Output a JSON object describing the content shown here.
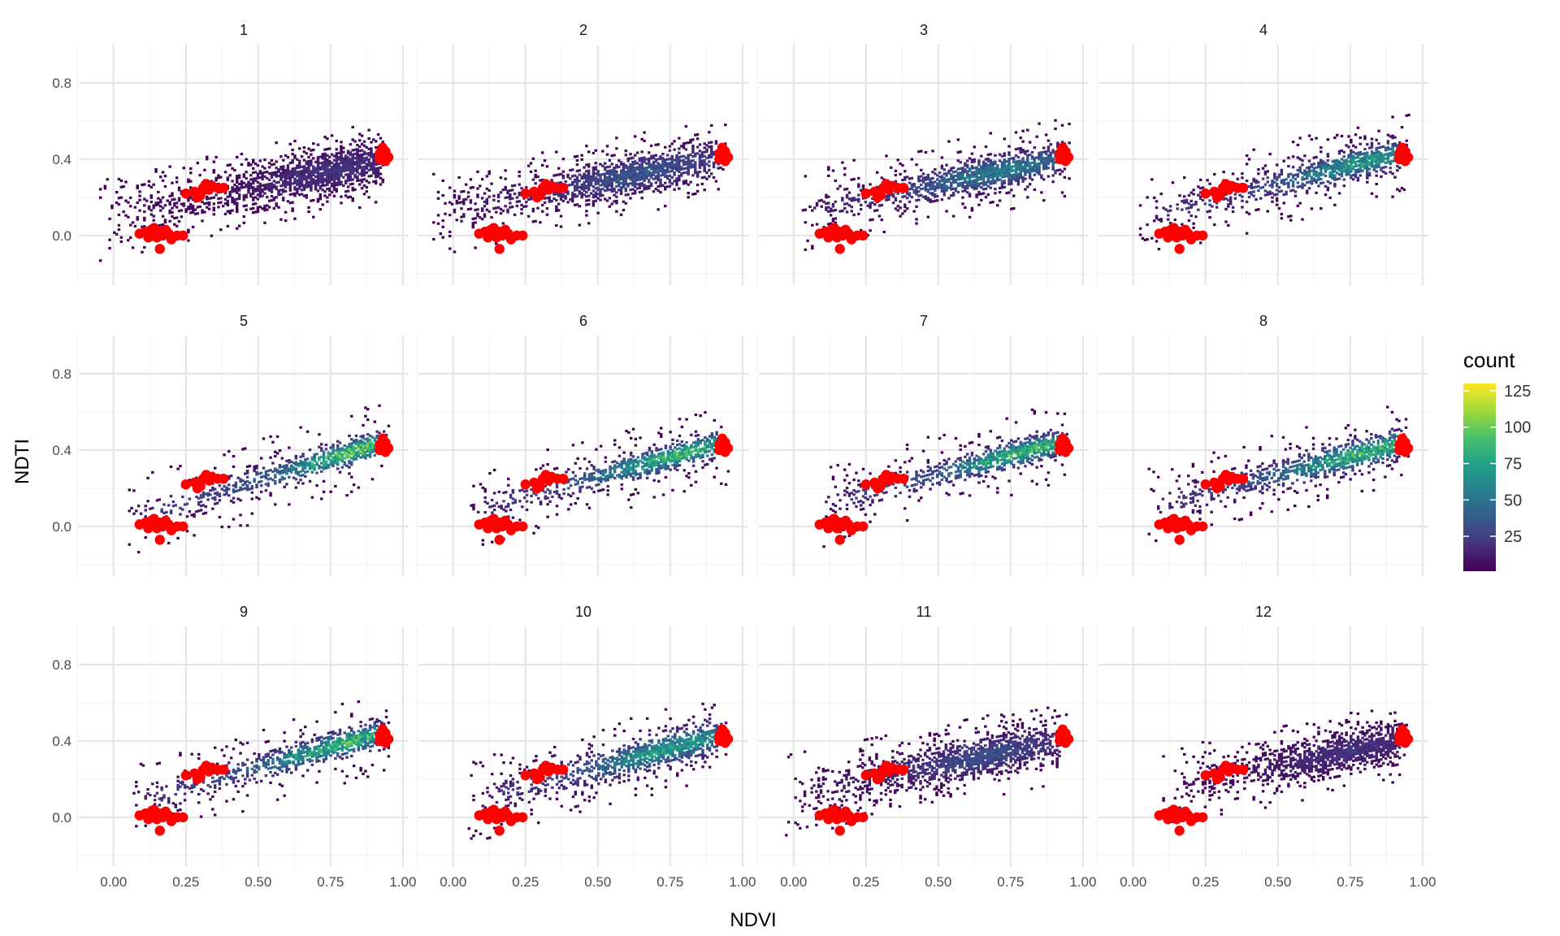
{
  "chart_data": {
    "type": "heatmap",
    "subtype": "faceted hexbin density with point overlay",
    "xlabel": "NDVI",
    "ylabel": "NDTI",
    "xlim": [
      -0.12,
      1.02
    ],
    "ylim": [
      -0.26,
      1.0
    ],
    "x_ticks": [
      0.0,
      0.25,
      0.5,
      0.75,
      1.0
    ],
    "x_tick_labels": [
      "0.00",
      "0.25",
      "0.50",
      "0.75",
      "1.00"
    ],
    "y_ticks": [
      0.0,
      0.4,
      0.8
    ],
    "y_tick_labels": [
      "0.0",
      "0.4",
      "0.8"
    ],
    "grid": true,
    "facet_layout": {
      "rows": 3,
      "cols": 4
    },
    "legend": {
      "title": "count",
      "placement": "right",
      "range": [
        1,
        130
      ],
      "ticks": [
        25,
        50,
        75,
        100,
        125
      ],
      "colormap": "viridis"
    },
    "colormap_stops": [
      "#440154",
      "#46327e",
      "#365c8d",
      "#277f8e",
      "#1fa187",
      "#4ac16d",
      "#a0da39",
      "#fde725"
    ],
    "point_color": "#ff0000",
    "facets": [
      {
        "label": "1",
        "x_range": [
          -0.05,
          0.95
        ],
        "y_at_x0": 0.1,
        "slope": 0.31,
        "spread": 0.07,
        "peak_x": 0.75,
        "max_count": 25
      },
      {
        "label": "2",
        "x_range": [
          -0.08,
          0.95
        ],
        "y_at_x0": 0.13,
        "slope": 0.3,
        "spread": 0.06,
        "peak_x": 0.65,
        "max_count": 45
      },
      {
        "label": "3",
        "x_range": [
          0.02,
          0.95
        ],
        "y_at_x0": 0.12,
        "slope": 0.3,
        "spread": 0.05,
        "peak_x": 0.7,
        "max_count": 70
      },
      {
        "label": "4",
        "x_range": [
          0.02,
          0.95
        ],
        "y_at_x0": 0.08,
        "slope": 0.38,
        "spread": 0.045,
        "peak_x": 0.8,
        "max_count": 90
      },
      {
        "label": "5",
        "x_range": [
          0.05,
          0.95
        ],
        "y_at_x0": 0.01,
        "slope": 0.46,
        "spread": 0.04,
        "peak_x": 0.85,
        "max_count": 120
      },
      {
        "label": "6",
        "x_range": [
          0.05,
          0.95
        ],
        "y_at_x0": 0.06,
        "slope": 0.4,
        "spread": 0.04,
        "peak_x": 0.78,
        "max_count": 110
      },
      {
        "label": "7",
        "x_range": [
          0.1,
          0.95
        ],
        "y_at_x0": 0.07,
        "slope": 0.4,
        "spread": 0.04,
        "peak_x": 0.8,
        "max_count": 110
      },
      {
        "label": "8",
        "x_range": [
          0.05,
          0.95
        ],
        "y_at_x0": 0.08,
        "slope": 0.38,
        "spread": 0.045,
        "peak_x": 0.8,
        "max_count": 110
      },
      {
        "label": "9",
        "x_range": [
          0.05,
          0.95
        ],
        "y_at_x0": 0.05,
        "slope": 0.42,
        "spread": 0.04,
        "peak_x": 0.8,
        "max_count": 110
      },
      {
        "label": "10",
        "x_range": [
          0.05,
          0.95
        ],
        "y_at_x0": 0.06,
        "slope": 0.4,
        "spread": 0.05,
        "peak_x": 0.75,
        "max_count": 90
      },
      {
        "label": "11",
        "x_range": [
          -0.03,
          0.95
        ],
        "y_at_x0": 0.12,
        "slope": 0.3,
        "spread": 0.06,
        "peak_x": 0.65,
        "max_count": 40
      },
      {
        "label": "12",
        "x_range": [
          0.1,
          0.95
        ],
        "y_at_x0": 0.12,
        "slope": 0.3,
        "spread": 0.06,
        "peak_x": 0.75,
        "max_count": 25
      }
    ],
    "points": [
      [
        0.09,
        0.01
      ],
      [
        0.11,
        0.02
      ],
      [
        0.12,
        0.0
      ],
      [
        0.13,
        0.03
      ],
      [
        0.14,
        0.01
      ],
      [
        0.15,
        -0.01
      ],
      [
        0.16,
        0.02
      ],
      [
        0.17,
        0.0
      ],
      [
        0.18,
        0.03
      ],
      [
        0.19,
        0.01
      ],
      [
        0.2,
        -0.02
      ],
      [
        0.22,
        0.0
      ],
      [
        0.24,
        0.0
      ],
      [
        0.16,
        -0.07
      ],
      [
        0.12,
        -0.01
      ],
      [
        0.14,
        0.04
      ],
      [
        0.25,
        0.22
      ],
      [
        0.28,
        0.23
      ],
      [
        0.3,
        0.21
      ],
      [
        0.31,
        0.25
      ],
      [
        0.33,
        0.24
      ],
      [
        0.34,
        0.26
      ],
      [
        0.36,
        0.25
      ],
      [
        0.38,
        0.25
      ],
      [
        0.29,
        0.2
      ],
      [
        0.32,
        0.27
      ],
      [
        0.92,
        0.4
      ],
      [
        0.93,
        0.42
      ],
      [
        0.94,
        0.44
      ],
      [
        0.93,
        0.46
      ],
      [
        0.94,
        0.39
      ],
      [
        0.95,
        0.41
      ],
      [
        0.92,
        0.43
      ],
      [
        0.94,
        0.42
      ]
    ]
  }
}
